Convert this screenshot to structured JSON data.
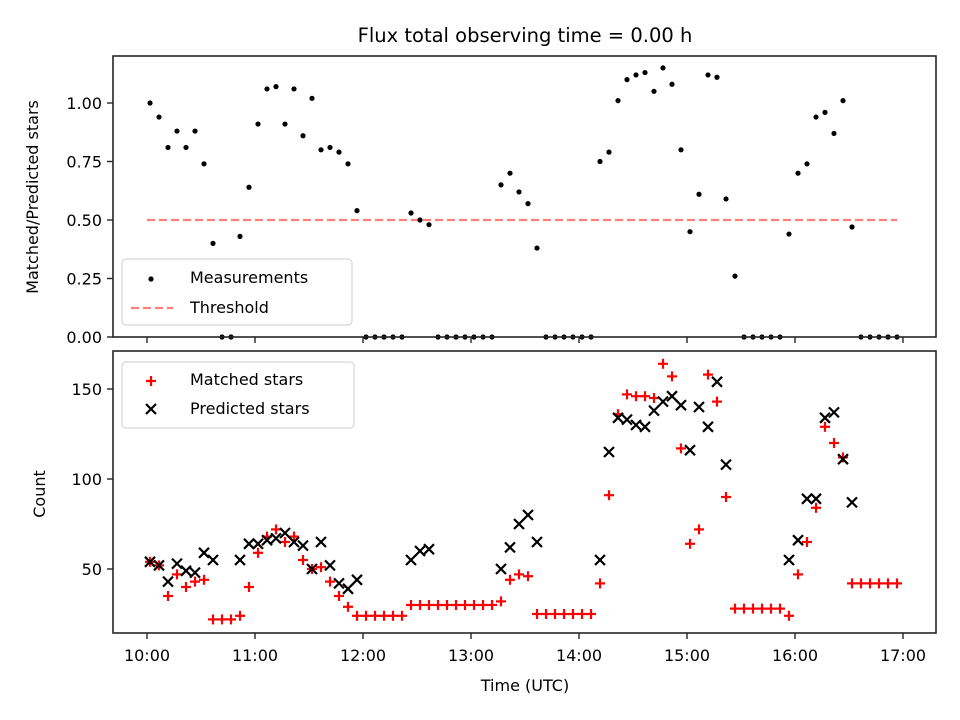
{
  "chart_data": [
    {
      "type": "scatter",
      "title": "Flux total observing time = 0.00 h",
      "xlabel": "",
      "ylabel": "Matched/Predicted stars",
      "xlim": [
        "09:49",
        "17:17"
      ],
      "ylim": [
        0,
        1.2
      ],
      "yticks": [
        "0.00",
        "0.25",
        "0.50",
        "0.75",
        "1.00"
      ],
      "ytick_values": [
        0,
        0.25,
        0.5,
        0.75,
        1.0
      ],
      "xticks": [
        "10:00",
        "11:00",
        "12:00",
        "13:00",
        "14:00",
        "15:00",
        "16:00",
        "17:00"
      ],
      "show_xtick_labels": false,
      "legend": {
        "placement": "lower-left",
        "entries": [
          "Measurements",
          "Threshold"
        ]
      },
      "threshold": {
        "name": "Threshold",
        "value": 0.5,
        "x_start": "10:00",
        "x_end": "16:55",
        "color": "#ff7f7f"
      },
      "series": [
        {
          "name": "Measurements",
          "color": "#000000",
          "marker": "dot",
          "x_start": "10:00",
          "x_step_minutes": 5,
          "values": [
            1.0,
            0.94,
            0.81,
            0.88,
            0.81,
            0.88,
            0.74,
            0.4,
            0,
            0,
            0.43,
            0.64,
            0.91,
            1.06,
            1.07,
            0.91,
            1.06,
            0.86,
            1.02,
            0.8,
            0.81,
            0.79,
            0.74,
            0.54,
            0,
            0,
            0,
            0,
            0,
            0.53,
            0.5,
            0.48,
            0,
            0,
            0,
            0,
            0,
            0,
            0,
            0.65,
            0.7,
            0.62,
            0.57,
            0.38,
            0,
            0,
            0,
            0,
            0,
            0,
            0.75,
            0.79,
            1.01,
            1.1,
            1.12,
            1.13,
            1.05,
            1.15,
            1.08,
            0.8,
            0.45,
            0.61,
            1.12,
            1.11,
            0.59,
            0.26,
            0,
            0,
            0,
            0,
            0,
            0.44,
            0.7,
            0.74,
            0.94,
            0.96,
            0.87,
            1.01,
            0.47,
            0,
            0,
            0,
            0,
            0
          ]
        }
      ]
    },
    {
      "type": "scatter",
      "title": "",
      "xlabel": "Time (UTC)",
      "ylabel": "Count",
      "xlim": [
        "09:49",
        "17:17"
      ],
      "ylim": [
        15,
        170
      ],
      "yticks": [
        "50",
        "100",
        "150"
      ],
      "ytick_values": [
        50,
        100,
        150
      ],
      "xticks": [
        "10:00",
        "11:00",
        "12:00",
        "13:00",
        "14:00",
        "15:00",
        "16:00",
        "17:00"
      ],
      "show_xtick_labels": true,
      "legend": {
        "placement": "upper-left",
        "entries": [
          "Matched stars",
          "Predicted stars"
        ]
      },
      "series": [
        {
          "name": "Matched stars",
          "color": "#ff0000",
          "marker": "plus",
          "x_start": "10:00",
          "x_step_minutes": 5,
          "values": [
            54,
            52,
            35,
            47,
            40,
            43,
            44,
            22,
            22,
            22,
            24,
            40,
            59,
            68,
            72,
            65,
            68,
            55,
            50,
            51,
            43,
            35,
            29,
            24,
            24,
            24,
            24,
            24,
            24,
            30,
            30,
            30,
            30,
            30,
            30,
            30,
            30,
            30,
            30,
            32,
            44,
            47,
            46,
            25,
            25,
            25,
            25,
            25,
            25,
            25,
            42,
            91,
            136,
            147,
            146,
            146,
            145,
            164,
            157,
            117,
            64,
            72,
            158,
            143,
            90,
            28,
            28,
            28,
            28,
            28,
            28,
            24,
            47,
            65,
            84,
            129,
            120,
            112,
            42,
            42,
            42,
            42,
            42,
            42
          ]
        },
        {
          "name": "Predicted stars",
          "color": "#000000",
          "marker": "x",
          "x_start": "10:00",
          "x_step_minutes": 5,
          "values": [
            54,
            52,
            43,
            53,
            49,
            48,
            59,
            55,
            null,
            null,
            55,
            64,
            64,
            66,
            67,
            70,
            65,
            63,
            50,
            65,
            52,
            42,
            39,
            44,
            null,
            null,
            null,
            null,
            null,
            55,
            60,
            61,
            null,
            null,
            null,
            null,
            null,
            null,
            null,
            50,
            62,
            75,
            80,
            65,
            null,
            null,
            null,
            null,
            null,
            null,
            55,
            115,
            134,
            133,
            130,
            129,
            138,
            143,
            146,
            141,
            116,
            140,
            129,
            154,
            108,
            null,
            null,
            null,
            null,
            null,
            null,
            55,
            66,
            89,
            89,
            134,
            137,
            111,
            87,
            null,
            null,
            null,
            null,
            null
          ]
        }
      ]
    }
  ]
}
